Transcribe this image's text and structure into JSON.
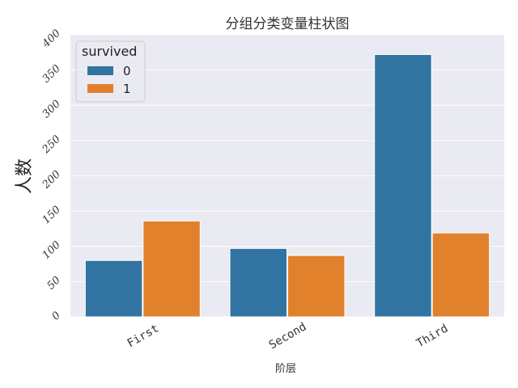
{
  "chart_data": {
    "type": "bar",
    "title": "分组分类变量柱状图",
    "xlabel": "阶层",
    "ylabel": "人数",
    "categories": [
      "First",
      "Second",
      "Third"
    ],
    "series": [
      {
        "name": "0",
        "values": [
          80,
          97,
          372
        ],
        "color": "#3274a1"
      },
      {
        "name": "1",
        "values": [
          136,
          87,
          119
        ],
        "color": "#e1812c"
      }
    ],
    "ylim": [
      0,
      400
    ],
    "yticks": [
      0,
      50,
      100,
      150,
      200,
      250,
      300,
      350,
      400
    ],
    "legend": {
      "title": "survived",
      "placement": "top-left"
    },
    "grid": true,
    "background": "#eaeaf2"
  }
}
